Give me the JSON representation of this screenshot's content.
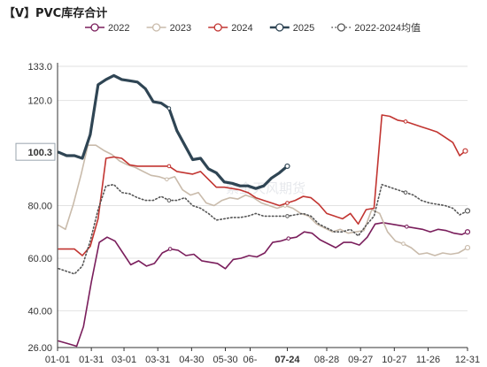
{
  "title": "【V】PVC库存合计",
  "watermark": "紫金天风期货",
  "chart_data": {
    "type": "line",
    "title": "【V】PVC库存合计",
    "ylim": [
      26,
      133
    ],
    "yticks": [
      26,
      40,
      60,
      80,
      100.3,
      120,
      133
    ],
    "ytick_labels": [
      "26.00",
      "40.00",
      "60.00",
      "80.00",
      "100.3",
      "120.0",
      "133.0"
    ],
    "ytick_highlight": "100.3",
    "grid": "horizontal",
    "legend": "top",
    "xlim": [
      1,
      365
    ],
    "xticks": [
      {
        "day": 1,
        "label": "01-01"
      },
      {
        "day": 31,
        "label": "01-31"
      },
      {
        "day": 60,
        "label": "03-01"
      },
      {
        "day": 90,
        "label": "03-31"
      },
      {
        "day": 120,
        "label": "04-30"
      },
      {
        "day": 150,
        "label": "05-30"
      },
      {
        "day": 172,
        "label": "06-"
      },
      {
        "day": 205,
        "label": "07-24",
        "highlight": true
      },
      {
        "day": 240,
        "label": "08-28"
      },
      {
        "day": 270,
        "label": "09-27"
      },
      {
        "day": 300,
        "label": "10-27"
      },
      {
        "day": 330,
        "label": "11-26"
      },
      {
        "day": 365,
        "label": "12-31"
      }
    ],
    "series": [
      {
        "name": "2022",
        "color": "#7a1e5c",
        "style": "solid",
        "points": [
          [
            2,
            28.5
          ],
          [
            10,
            27.5
          ],
          [
            18,
            26.5
          ],
          [
            24,
            34
          ],
          [
            31,
            51
          ],
          [
            38,
            66
          ],
          [
            45,
            68
          ],
          [
            52,
            66.5
          ],
          [
            59,
            62
          ],
          [
            66,
            57.5
          ],
          [
            73,
            59
          ],
          [
            80,
            57
          ],
          [
            87,
            58
          ],
          [
            94,
            62
          ],
          [
            101,
            63.5
          ],
          [
            108,
            63
          ],
          [
            115,
            61
          ],
          [
            122,
            61.5
          ],
          [
            129,
            59
          ],
          [
            136,
            58.5
          ],
          [
            143,
            58
          ],
          [
            150,
            56
          ],
          [
            157,
            59.5
          ],
          [
            164,
            60
          ],
          [
            171,
            61
          ],
          [
            178,
            60.5
          ],
          [
            185,
            62
          ],
          [
            192,
            66
          ],
          [
            199,
            66.5
          ],
          [
            206,
            67.5
          ],
          [
            213,
            68
          ],
          [
            220,
            70
          ],
          [
            227,
            69.5
          ],
          [
            234,
            67
          ],
          [
            241,
            65.5
          ],
          [
            248,
            64
          ],
          [
            255,
            66
          ],
          [
            262,
            66
          ],
          [
            269,
            65
          ],
          [
            276,
            68
          ],
          [
            283,
            73
          ],
          [
            290,
            73.5
          ],
          [
            297,
            73
          ],
          [
            304,
            72.5
          ],
          [
            311,
            72
          ],
          [
            318,
            71.5
          ],
          [
            325,
            71
          ],
          [
            332,
            70
          ],
          [
            339,
            71
          ],
          [
            346,
            70.5
          ],
          [
            353,
            69.5
          ],
          [
            360,
            69
          ],
          [
            365,
            70
          ]
        ]
      },
      {
        "name": "2023",
        "color": "#c9bbab",
        "style": "solid",
        "points": [
          [
            2,
            72.5
          ],
          [
            8,
            71
          ],
          [
            15,
            80.5
          ],
          [
            22,
            92
          ],
          [
            28,
            103
          ],
          [
            35,
            103
          ],
          [
            42,
            101
          ],
          [
            49,
            99.5
          ],
          [
            56,
            97
          ],
          [
            63,
            95.5
          ],
          [
            70,
            94.5
          ],
          [
            77,
            93
          ],
          [
            84,
            91.5
          ],
          [
            91,
            91
          ],
          [
            98,
            90
          ],
          [
            105,
            91
          ],
          [
            112,
            86
          ],
          [
            119,
            84
          ],
          [
            126,
            85
          ],
          [
            133,
            81
          ],
          [
            140,
            80
          ],
          [
            147,
            82
          ],
          [
            154,
            83
          ],
          [
            161,
            82.5
          ],
          [
            168,
            84
          ],
          [
            175,
            83
          ],
          [
            182,
            81
          ],
          [
            189,
            80
          ],
          [
            196,
            79
          ],
          [
            203,
            80
          ],
          [
            210,
            79
          ],
          [
            217,
            77
          ],
          [
            224,
            76
          ],
          [
            231,
            73
          ],
          [
            238,
            71.5
          ],
          [
            245,
            70
          ],
          [
            252,
            71
          ],
          [
            259,
            69.5
          ],
          [
            266,
            70
          ],
          [
            273,
            70.5
          ],
          [
            280,
            78.5
          ],
          [
            287,
            77
          ],
          [
            294,
            70
          ],
          [
            301,
            66.5
          ],
          [
            308,
            65.5
          ],
          [
            315,
            64
          ],
          [
            322,
            61.5
          ],
          [
            329,
            62
          ],
          [
            336,
            61
          ],
          [
            343,
            62
          ],
          [
            350,
            61.5
          ],
          [
            357,
            62
          ],
          [
            365,
            64
          ]
        ]
      },
      {
        "name": "2024",
        "color": "#c23531",
        "style": "solid",
        "points": [
          [
            2,
            63.5
          ],
          [
            9,
            63.5
          ],
          [
            16,
            63.5
          ],
          [
            23,
            61
          ],
          [
            30,
            64.5
          ],
          [
            37,
            75
          ],
          [
            44,
            98
          ],
          [
            51,
            98.5
          ],
          [
            58,
            98
          ],
          [
            65,
            95.5
          ],
          [
            72,
            95
          ],
          [
            79,
            95
          ],
          [
            86,
            95
          ],
          [
            93,
            95
          ],
          [
            100,
            95
          ],
          [
            107,
            93
          ],
          [
            114,
            92.5
          ],
          [
            121,
            92
          ],
          [
            128,
            93
          ],
          [
            135,
            90
          ],
          [
            142,
            87
          ],
          [
            149,
            87
          ],
          [
            156,
            86.5
          ],
          [
            163,
            86
          ],
          [
            170,
            85
          ],
          [
            177,
            83
          ],
          [
            184,
            82
          ],
          [
            191,
            81
          ],
          [
            198,
            80
          ],
          [
            205,
            81
          ],
          [
            212,
            82
          ],
          [
            219,
            83.5
          ],
          [
            226,
            83
          ],
          [
            233,
            80.5
          ],
          [
            240,
            77
          ],
          [
            247,
            76
          ],
          [
            254,
            75
          ],
          [
            261,
            77
          ],
          [
            268,
            73
          ],
          [
            275,
            78.5
          ],
          [
            282,
            79
          ],
          [
            289,
            114.5
          ],
          [
            296,
            114
          ],
          [
            303,
            112.5
          ],
          [
            310,
            112
          ],
          [
            317,
            111
          ],
          [
            324,
            110
          ],
          [
            331,
            109
          ],
          [
            338,
            108
          ],
          [
            345,
            106
          ],
          [
            352,
            104
          ],
          [
            358,
            99
          ],
          [
            363,
            100.8
          ]
        ]
      },
      {
        "name": "2025",
        "color": "#2f4554",
        "style": "solid",
        "width": 3.2,
        "points": [
          [
            2,
            100.3
          ],
          [
            9,
            99
          ],
          [
            16,
            99
          ],
          [
            23,
            98
          ],
          [
            30,
            107
          ],
          [
            37,
            126
          ],
          [
            44,
            128
          ],
          [
            51,
            129.5
          ],
          [
            58,
            128
          ],
          [
            65,
            127.5
          ],
          [
            72,
            127
          ],
          [
            79,
            124.5
          ],
          [
            86,
            119.5
          ],
          [
            93,
            119
          ],
          [
            100,
            117
          ],
          [
            107,
            108.5
          ],
          [
            114,
            103
          ],
          [
            121,
            97.5
          ],
          [
            128,
            98
          ],
          [
            135,
            94
          ],
          [
            142,
            92.5
          ],
          [
            149,
            89
          ],
          [
            156,
            88.5
          ],
          [
            163,
            87.5
          ],
          [
            170,
            87.5
          ],
          [
            177,
            86.5
          ],
          [
            184,
            87.5
          ],
          [
            191,
            90.5
          ],
          [
            198,
            92.5
          ],
          [
            205,
            95
          ]
        ]
      },
      {
        "name": "2022-2024均值",
        "color": "#555555",
        "style": "dotted",
        "points": [
          [
            2,
            56
          ],
          [
            9,
            55
          ],
          [
            16,
            54
          ],
          [
            23,
            57
          ],
          [
            30,
            66.5
          ],
          [
            37,
            78.5
          ],
          [
            44,
            87.5
          ],
          [
            51,
            88
          ],
          [
            58,
            85
          ],
          [
            65,
            84.5
          ],
          [
            72,
            83
          ],
          [
            79,
            82
          ],
          [
            86,
            82
          ],
          [
            93,
            83.5
          ],
          [
            100,
            82
          ],
          [
            107,
            82
          ],
          [
            114,
            83
          ],
          [
            121,
            80
          ],
          [
            128,
            79
          ],
          [
            135,
            77
          ],
          [
            142,
            74.5
          ],
          [
            149,
            75
          ],
          [
            156,
            75.5
          ],
          [
            163,
            75.5
          ],
          [
            170,
            76
          ],
          [
            177,
            77
          ],
          [
            184,
            76
          ],
          [
            191,
            76
          ],
          [
            198,
            76
          ],
          [
            205,
            76
          ],
          [
            212,
            76.5
          ],
          [
            219,
            77
          ],
          [
            226,
            76
          ],
          [
            233,
            73
          ],
          [
            240,
            71.5
          ],
          [
            247,
            70
          ],
          [
            254,
            70
          ],
          [
            261,
            71
          ],
          [
            268,
            68.5
          ],
          [
            275,
            72.5
          ],
          [
            282,
            76
          ],
          [
            289,
            88
          ],
          [
            296,
            87
          ],
          [
            303,
            86
          ],
          [
            310,
            85
          ],
          [
            317,
            84
          ],
          [
            324,
            82
          ],
          [
            331,
            81
          ],
          [
            338,
            80.5
          ],
          [
            345,
            80
          ],
          [
            352,
            79
          ],
          [
            358,
            76.5
          ],
          [
            365,
            78
          ]
        ]
      }
    ]
  }
}
